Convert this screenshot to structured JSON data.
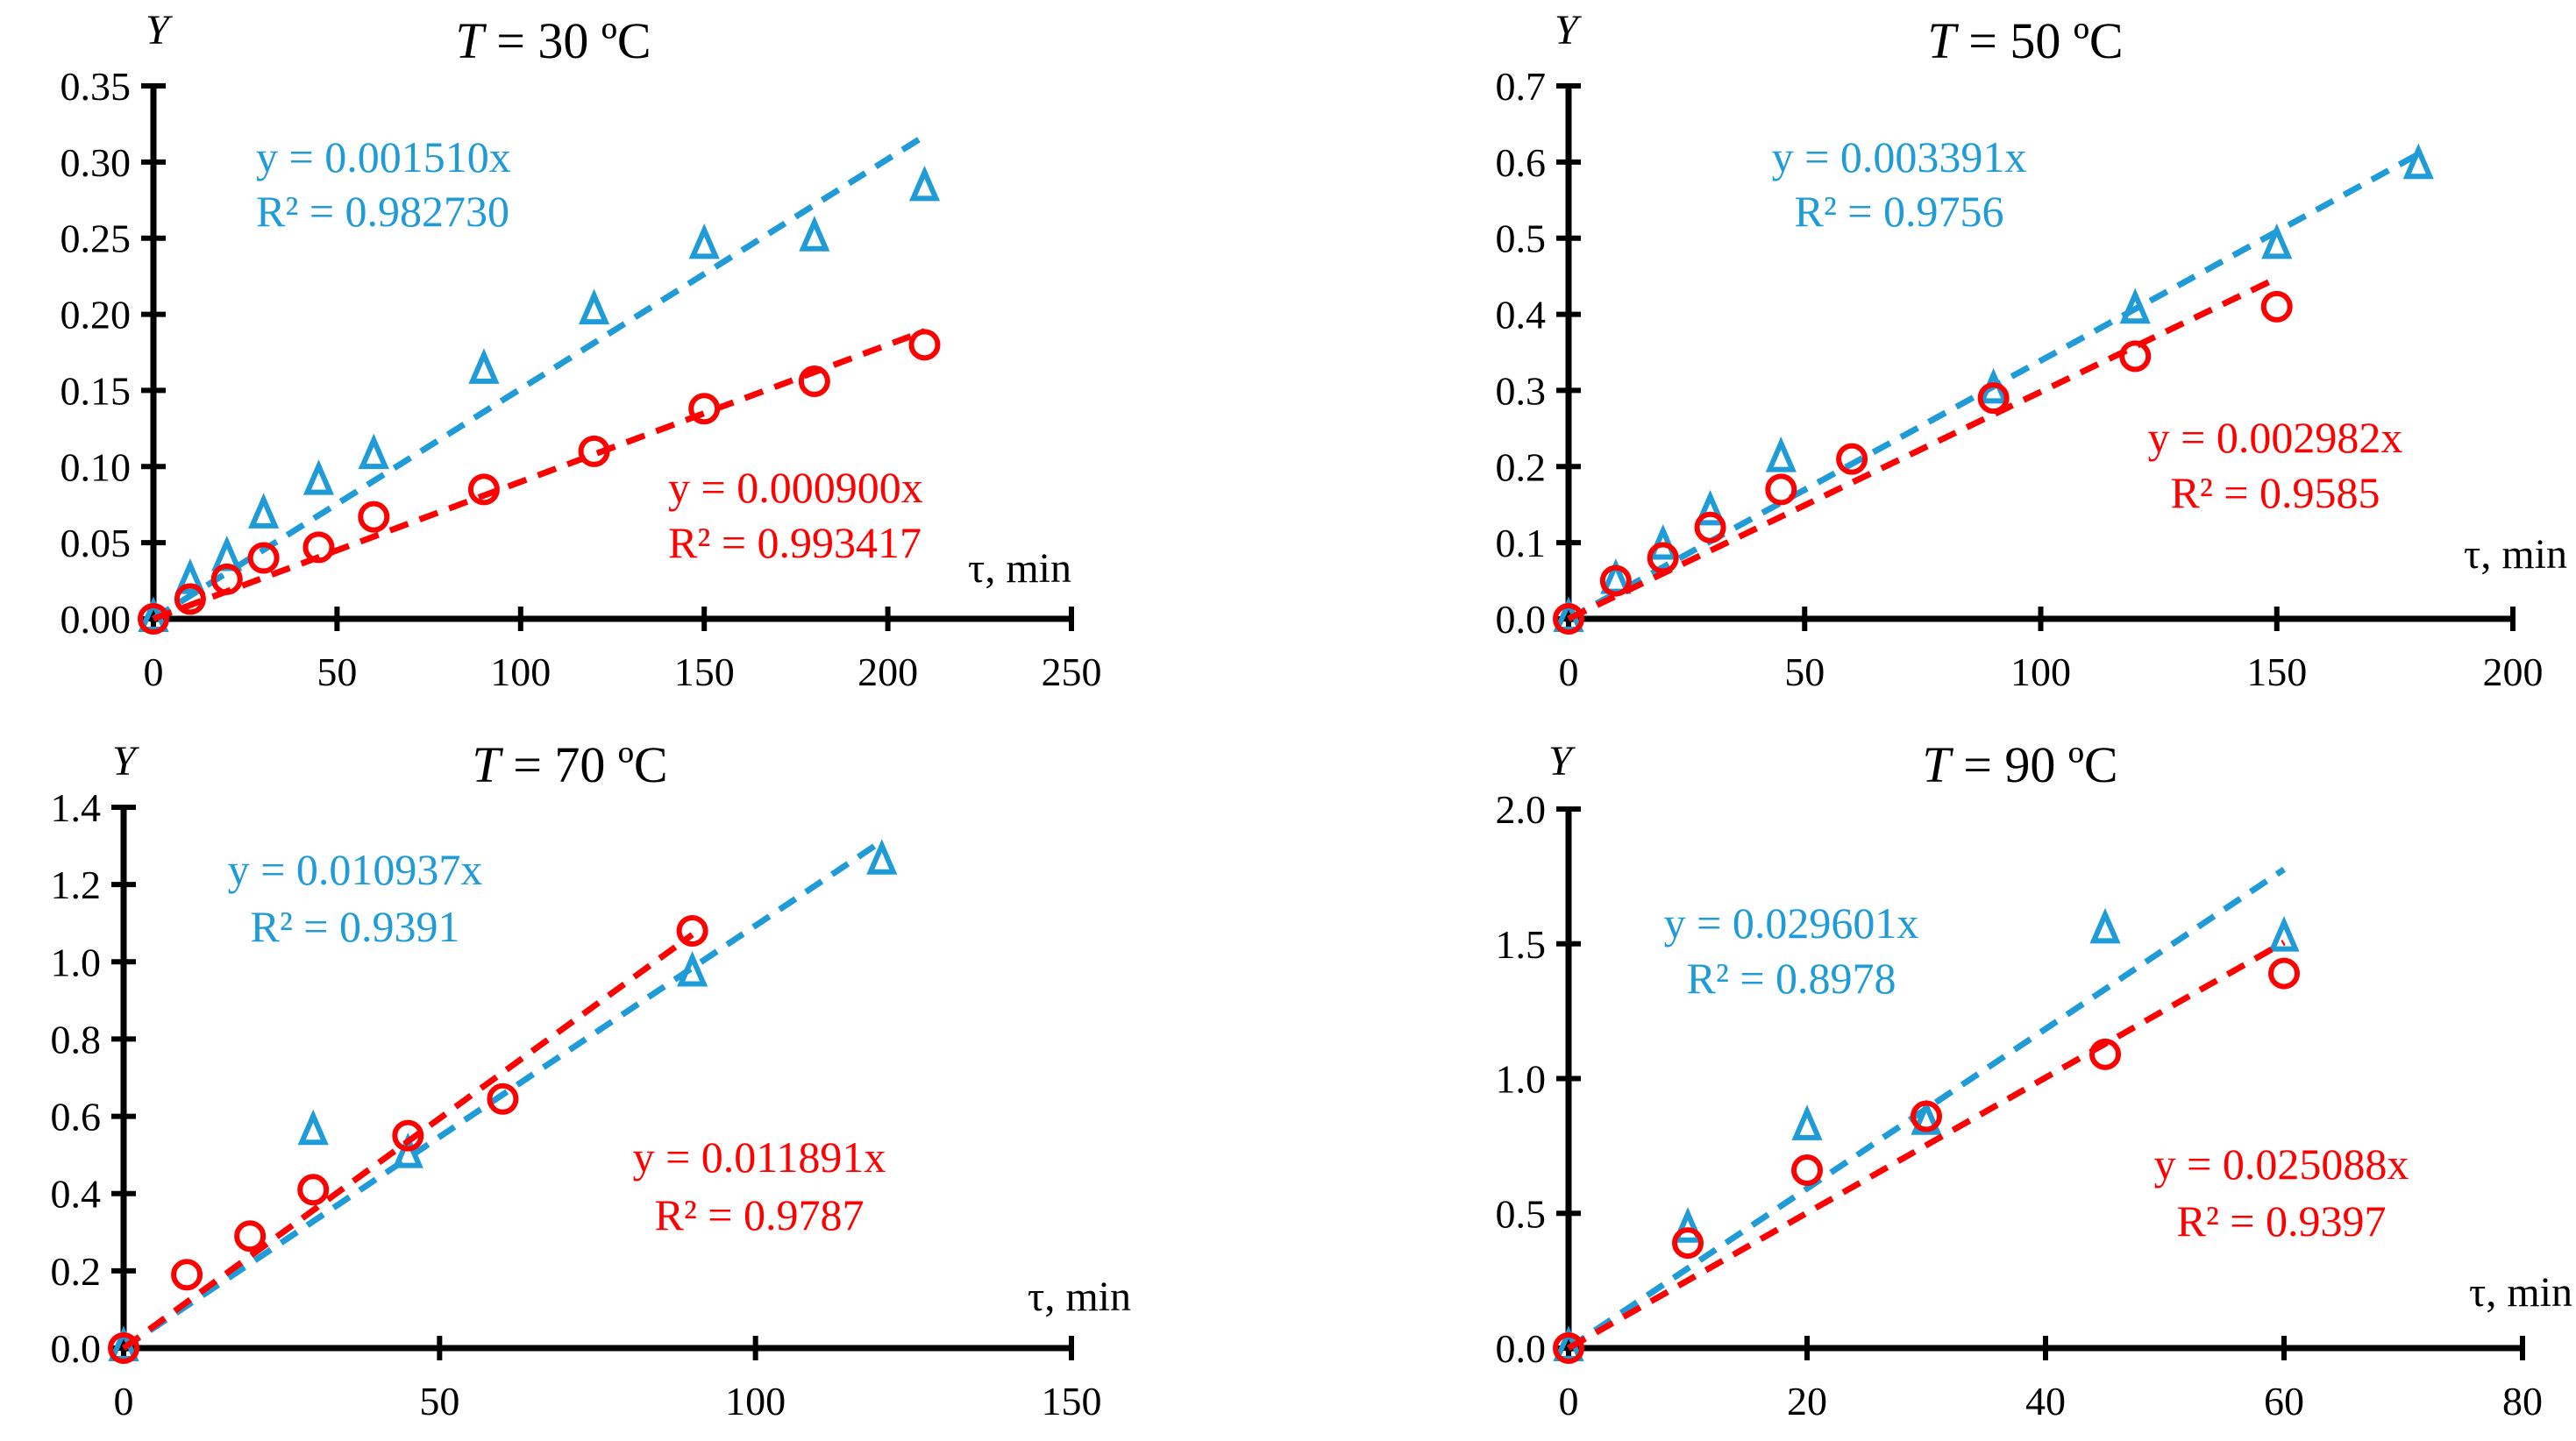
{
  "colors": {
    "series_a": "#1f9bd7",
    "series_b": "#ff0000",
    "axis": "#000000"
  },
  "chart_data": [
    {
      "type": "scatter",
      "title_var": "T",
      "title_rest": " = 30 ºC",
      "ylabel": "Y",
      "xlabel": "τ, min",
      "xlim": [
        0,
        250
      ],
      "xticks": [
        0,
        50,
        100,
        150,
        200,
        250
      ],
      "xtick_labels": [
        "0",
        "50",
        "100",
        "150",
        "200",
        "250"
      ],
      "ylim": [
        0,
        0.35
      ],
      "yticks": [
        0,
        0.05,
        0.1,
        0.15,
        0.2,
        0.25,
        0.3,
        0.35
      ],
      "ytick_labels": [
        "0.00",
        "0.05",
        "0.10",
        "0.15",
        "0.20",
        "0.25",
        "0.30",
        "0.35"
      ],
      "grid": false,
      "series": [
        {
          "name": "triangles",
          "marker": "triangle",
          "color": "#1f9bd7",
          "x": [
            0,
            10,
            20,
            30,
            45,
            60,
            90,
            120,
            150,
            180,
            210
          ],
          "y": [
            0,
            0.025,
            0.04,
            0.068,
            0.09,
            0.107,
            0.163,
            0.202,
            0.245,
            0.25,
            0.283
          ],
          "trend_slope": 0.00151,
          "trend_xmax": 210,
          "equation": "y = 0.001510x",
          "r2": "R² = 0.982730"
        },
        {
          "name": "circles",
          "marker": "circle",
          "color": "#ff0000",
          "x": [
            0,
            10,
            20,
            30,
            45,
            60,
            90,
            120,
            150,
            180,
            210
          ],
          "y": [
            0,
            0.013,
            0.026,
            0.04,
            0.047,
            0.067,
            0.085,
            0.11,
            0.138,
            0.156,
            0.18
          ],
          "trend_slope": 0.0009,
          "trend_xmax": 210,
          "equation": "y = 0.000900x",
          "r2": "R² = 0.993417"
        }
      ]
    },
    {
      "type": "scatter",
      "title_var": "T",
      "title_rest": " = 50 ºC",
      "ylabel": "Y",
      "xlabel": "τ, min",
      "xlim": [
        0,
        200
      ],
      "xticks": [
        0,
        50,
        100,
        150,
        200
      ],
      "xtick_labels": [
        "0",
        "50",
        "100",
        "150",
        "200"
      ],
      "ylim": [
        0,
        0.7
      ],
      "yticks": [
        0,
        0.1,
        0.2,
        0.3,
        0.4,
        0.5,
        0.6,
        0.7
      ],
      "ytick_labels": [
        "0.0",
        "0.1",
        "0.2",
        "0.3",
        "0.4",
        "0.5",
        "0.6",
        "0.7"
      ],
      "grid": false,
      "series": [
        {
          "name": "triangles",
          "marker": "triangle",
          "color": "#1f9bd7",
          "x": [
            0,
            10,
            20,
            30,
            45,
            90,
            120,
            150,
            180
          ],
          "y": [
            0,
            0.05,
            0.095,
            0.14,
            0.21,
            0.3,
            0.405,
            0.49,
            0.595
          ],
          "trend_slope": 0.003391,
          "trend_xmax": 180,
          "equation": "y = 0.003391x",
          "r2": "R² = 0.9756"
        },
        {
          "name": "circles",
          "marker": "circle",
          "color": "#ff0000",
          "x": [
            0,
            10,
            20,
            30,
            45,
            60,
            90,
            120,
            150
          ],
          "y": [
            0,
            0.05,
            0.08,
            0.12,
            0.17,
            0.21,
            0.29,
            0.345,
            0.41
          ],
          "trend_slope": 0.002982,
          "trend_xmax": 150,
          "equation": "y = 0.002982x",
          "r2": "R² = 0.9585"
        }
      ]
    },
    {
      "type": "scatter",
      "title_var": "T",
      "title_rest": " = 70 ºC",
      "ylabel": "Y",
      "xlabel": "τ, min",
      "xlim": [
        0,
        150
      ],
      "xticks": [
        0,
        50,
        100,
        150
      ],
      "xtick_labels": [
        "0",
        "50",
        "100",
        "150"
      ],
      "ylim": [
        0,
        1.4
      ],
      "yticks": [
        0,
        0.2,
        0.4,
        0.6,
        0.8,
        1.0,
        1.2,
        1.4
      ],
      "ytick_labels": [
        "0.0",
        "0.2",
        "0.4",
        "0.6",
        "0.8",
        "1.0",
        "1.2",
        "1.4"
      ],
      "grid": false,
      "series": [
        {
          "name": "triangles",
          "marker": "triangle",
          "color": "#1f9bd7",
          "x": [
            0,
            30,
            45,
            90,
            120
          ],
          "y": [
            0,
            0.56,
            0.5,
            0.97,
            1.26
          ],
          "trend_slope": 0.010937,
          "trend_xmax": 120,
          "equation": "y = 0.010937x",
          "r2": "R² = 0.9391"
        },
        {
          "name": "circles",
          "marker": "circle",
          "color": "#ff0000",
          "x": [
            0,
            10,
            20,
            30,
            45,
            60,
            90
          ],
          "y": [
            0,
            0.19,
            0.29,
            0.41,
            0.55,
            0.645,
            1.08
          ],
          "trend_slope": 0.011891,
          "trend_xmax": 90,
          "equation": "y = 0.011891x",
          "r2": "R² = 0.9787"
        }
      ]
    },
    {
      "type": "scatter",
      "title_var": "T",
      "title_rest": " = 90 ºC",
      "ylabel": "Y",
      "xlabel": "τ, min",
      "xlim": [
        0,
        80
      ],
      "xticks": [
        0,
        20,
        40,
        60,
        80
      ],
      "xtick_labels": [
        "0",
        "20",
        "40",
        "60",
        "80"
      ],
      "ylim": [
        0,
        2.0
      ],
      "yticks": [
        0,
        0.5,
        1.0,
        1.5,
        2.0
      ],
      "ytick_labels": [
        "0.0",
        "0.5",
        "1.0",
        "1.5",
        "2.0"
      ],
      "grid": false,
      "series": [
        {
          "name": "triangles",
          "marker": "triangle",
          "color": "#1f9bd7",
          "x": [
            0,
            10,
            20,
            30,
            45,
            60
          ],
          "y": [
            0,
            0.44,
            0.82,
            0.84,
            1.55,
            1.52
          ],
          "trend_slope": 0.029601,
          "trend_xmax": 60,
          "equation": "y = 0.029601x",
          "r2": "R² = 0.8978"
        },
        {
          "name": "circles",
          "marker": "circle",
          "color": "#ff0000",
          "x": [
            0,
            10,
            20,
            30,
            45,
            60
          ],
          "y": [
            0,
            0.39,
            0.66,
            0.86,
            1.09,
            1.39
          ],
          "trend_slope": 0.025088,
          "trend_xmax": 60,
          "equation": "y = 0.025088x",
          "r2": "R² = 0.9397"
        }
      ]
    }
  ]
}
